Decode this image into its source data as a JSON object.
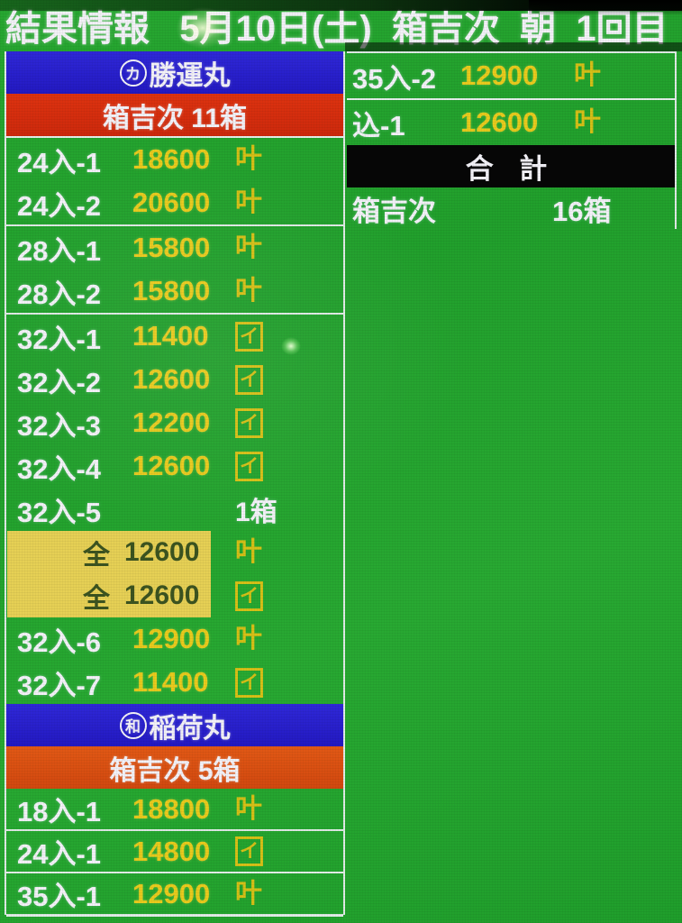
{
  "header": {
    "title": "結果情報   5月10日(土)  箱吉次  朝  1回目"
  },
  "marks": {
    "kano": "叶",
    "boxed_i": "イ"
  },
  "colors": {
    "background_green": "#23a22e",
    "bar_blue": "#2822cf",
    "bar_red": "#da2b0e",
    "bar_orange": "#dc4f13",
    "price_yellow": "#e9cb1d",
    "highlight_yellow": "#e6d055",
    "total_bar_black": "#060606",
    "separator_white": "#e2ece8"
  },
  "left_panel": {
    "section1": {
      "mark": "カ",
      "vessel": "勝運丸",
      "subheader": "箱吉次 11箱",
      "rows": [
        {
          "label": "24入-1",
          "price": "18600"
        },
        {
          "label": "24入-2",
          "price": "20600"
        },
        {
          "label": "28入-1",
          "price": "15800"
        },
        {
          "label": "28入-2",
          "price": "15800"
        },
        {
          "label": "32入-1",
          "price": "11400"
        },
        {
          "label": "32入-2",
          "price": "12600"
        },
        {
          "label": "32入-3",
          "price": "12200"
        },
        {
          "label": "32入-4",
          "price": "12600"
        },
        {
          "label": "32入-5",
          "count": "1箱"
        },
        {
          "label": "全",
          "price": "12600"
        },
        {
          "label": "全",
          "price": "12600"
        },
        {
          "label": "32入-6",
          "price": "12900"
        },
        {
          "label": "32入-7",
          "price": "11400"
        }
      ]
    },
    "section2": {
      "mark": "和",
      "vessel": "稲荷丸",
      "subheader": "箱吉次 5箱",
      "rows": [
        {
          "label": "18入-1",
          "price": "18800"
        },
        {
          "label": "24入-1",
          "price": "14800"
        },
        {
          "label": "35入-1",
          "price": "12900"
        }
      ]
    }
  },
  "right_panel": {
    "rows": [
      {
        "label": "35入-2",
        "price": "12900"
      },
      {
        "label": "込-1",
        "price": "12600"
      }
    ],
    "total_title": "合 計",
    "total_label": "箱吉次",
    "total_value": "16箱"
  }
}
